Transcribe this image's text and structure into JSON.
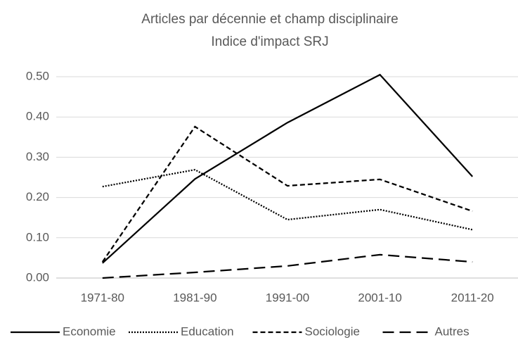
{
  "chart_data": {
    "type": "line",
    "title": "Articles par décennie et champ disciplinaire",
    "subtitle": "Indice d'impact SRJ",
    "categories": [
      "1971-80",
      "1981-90",
      "1991-00",
      "2001-10",
      "2011-20"
    ],
    "series": [
      {
        "name": "Economie",
        "color": "#000000",
        "dash": "solid",
        "values": [
          0.037,
          0.246,
          0.386,
          0.505,
          0.252
        ]
      },
      {
        "name": "Education",
        "color": "#000000",
        "dash": "dotted",
        "values": [
          0.227,
          0.269,
          0.145,
          0.17,
          0.12
        ]
      },
      {
        "name": "Sociologie",
        "color": "#000000",
        "dash": "dashed",
        "values": [
          0.04,
          0.376,
          0.229,
          0.245,
          0.166
        ]
      },
      {
        "name": "Autres",
        "color": "#000000",
        "dash": "long-dashed",
        "values": [
          0,
          0.014,
          0.03,
          0.058,
          0.04
        ]
      }
    ],
    "ylim": [
      0,
      0.5
    ],
    "yticks": [
      {
        "value": 0,
        "label": "0.00"
      },
      {
        "value": 0.1,
        "label": "0.10"
      },
      {
        "value": 0.2,
        "label": "0.20"
      },
      {
        "value": 0.3,
        "label": "0.30"
      },
      {
        "value": 0.4,
        "label": "0.40"
      },
      {
        "value": 0.5,
        "label": "0.50"
      }
    ],
    "grid": true,
    "legend": "bottom"
  }
}
